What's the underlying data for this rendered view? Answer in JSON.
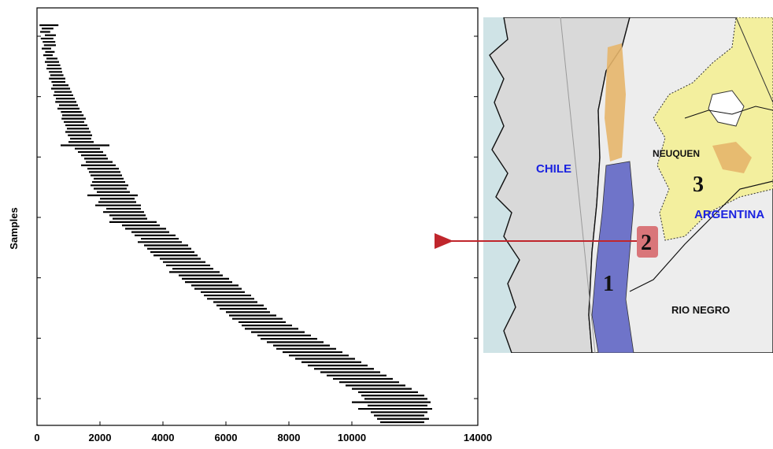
{
  "chart_data": {
    "type": "range",
    "xlabel": "",
    "ylabel": "Samples",
    "xlim": [
      0,
      14000
    ],
    "x_ticks": [
      "0",
      "2000",
      "4000",
      "6000",
      "8000",
      "10000",
      "14000"
    ],
    "x_tick_values": [
      0,
      2000,
      4000,
      6000,
      8000,
      10000,
      14000
    ],
    "y_ticks": 7,
    "grid": false,
    "legend": "none",
    "series": [
      {
        "sample_count": 120,
        "ranges": [
          [
            80,
            680
          ],
          [
            150,
            520
          ],
          [
            100,
            420
          ],
          [
            250,
            600
          ],
          [
            120,
            520
          ],
          [
            180,
            580
          ],
          [
            220,
            600
          ],
          [
            150,
            450
          ],
          [
            260,
            560
          ],
          [
            200,
            500
          ],
          [
            300,
            650
          ],
          [
            250,
            700
          ],
          [
            320,
            740
          ],
          [
            300,
            780
          ],
          [
            380,
            800
          ],
          [
            420,
            840
          ],
          [
            380,
            900
          ],
          [
            460,
            900
          ],
          [
            500,
            1000
          ],
          [
            450,
            1050
          ],
          [
            550,
            1100
          ],
          [
            520,
            1150
          ],
          [
            600,
            1200
          ],
          [
            580,
            1250
          ],
          [
            700,
            1300
          ],
          [
            650,
            1350
          ],
          [
            760,
            1420
          ],
          [
            800,
            1480
          ],
          [
            780,
            1550
          ],
          [
            850,
            1500
          ],
          [
            900,
            1600
          ],
          [
            950,
            1650
          ],
          [
            900,
            1700
          ],
          [
            980,
            1750
          ],
          [
            1050,
            1720
          ],
          [
            1000,
            1800
          ],
          [
            750,
            2300
          ],
          [
            1200,
            2000
          ],
          [
            1300,
            2100
          ],
          [
            1400,
            2200
          ],
          [
            1500,
            2250
          ],
          [
            1550,
            2400
          ],
          [
            1400,
            2500
          ],
          [
            1600,
            2600
          ],
          [
            1650,
            2650
          ],
          [
            1700,
            2700
          ],
          [
            1800,
            2750
          ],
          [
            1750,
            2800
          ],
          [
            1700,
            2900
          ],
          [
            1800,
            2850
          ],
          [
            1900,
            2950
          ],
          [
            1600,
            3200
          ],
          [
            2000,
            3100
          ],
          [
            1950,
            3150
          ],
          [
            1850,
            3300
          ],
          [
            2200,
            3300
          ],
          [
            2100,
            3400
          ],
          [
            2300,
            3450
          ],
          [
            2400,
            3500
          ],
          [
            2300,
            3800
          ],
          [
            2700,
            3900
          ],
          [
            2800,
            4100
          ],
          [
            3000,
            4200
          ],
          [
            3100,
            4400
          ],
          [
            3300,
            4500
          ],
          [
            3200,
            4600
          ],
          [
            3400,
            4800
          ],
          [
            3500,
            4900
          ],
          [
            3600,
            5000
          ],
          [
            3700,
            5100
          ],
          [
            3900,
            5200
          ],
          [
            4000,
            5350
          ],
          [
            4100,
            5500
          ],
          [
            4300,
            5600
          ],
          [
            4200,
            5800
          ],
          [
            4500,
            5900
          ],
          [
            4600,
            6100
          ],
          [
            4700,
            6200
          ],
          [
            4900,
            6400
          ],
          [
            5000,
            6500
          ],
          [
            5200,
            6600
          ],
          [
            5300,
            6800
          ],
          [
            5400,
            6900
          ],
          [
            5600,
            7000
          ],
          [
            5700,
            7200
          ],
          [
            5800,
            7300
          ],
          [
            6000,
            7400
          ],
          [
            6100,
            7600
          ],
          [
            6200,
            7800
          ],
          [
            6400,
            7900
          ],
          [
            6500,
            8100
          ],
          [
            6600,
            8300
          ],
          [
            6800,
            8500
          ],
          [
            7000,
            8700
          ],
          [
            7100,
            8900
          ],
          [
            7300,
            9100
          ],
          [
            7500,
            9300
          ],
          [
            7600,
            9500
          ],
          [
            7800,
            9700
          ],
          [
            8000,
            9900
          ],
          [
            8200,
            10100
          ],
          [
            8400,
            10300
          ],
          [
            8600,
            10500
          ],
          [
            8800,
            10700
          ],
          [
            9000,
            10900
          ],
          [
            9200,
            11100
          ],
          [
            9400,
            11300
          ],
          [
            9600,
            11500
          ],
          [
            9800,
            11700
          ],
          [
            10000,
            11900
          ],
          [
            10200,
            12100
          ],
          [
            10300,
            12300
          ],
          [
            10400,
            12400
          ],
          [
            10000,
            12500
          ],
          [
            10500,
            12400
          ],
          [
            10200,
            12550
          ],
          [
            10600,
            12400
          ],
          [
            10700,
            12300
          ],
          [
            10800,
            12450
          ],
          [
            10900,
            12300
          ]
        ]
      }
    ]
  },
  "map": {
    "labels": {
      "chile": "CHILE",
      "neuquen": "NEUQUEN",
      "argentina": "ARGENTINA",
      "rio_negro": "RIO NEGRO"
    },
    "numbers": {
      "one": "1",
      "two": "2",
      "three": "3"
    },
    "colors": {
      "sea": "#cfe3e6",
      "chile_land": "#d9d9d9",
      "argentina_land": "#ededed",
      "yellow_region": "#f3ef9e",
      "blue_band": "#6f74c9",
      "orange_patch": "#e6b56a",
      "highlight_box": "#d9767a",
      "arrow": "#c0262c",
      "label_blue": "#1a22e0"
    }
  }
}
